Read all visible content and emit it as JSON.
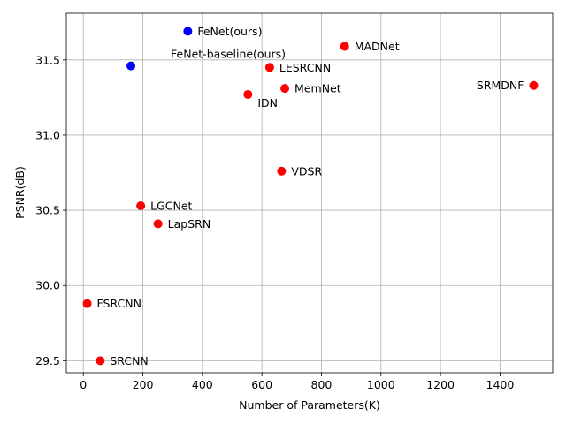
{
  "chart_data": {
    "type": "scatter",
    "title": "",
    "xlabel": "Number of Parameters(K)",
    "ylabel": "PSNR(dB)",
    "xlim": [
      -57,
      1577
    ],
    "ylim": [
      29.42,
      31.81
    ],
    "xticks": [
      0,
      200,
      400,
      600,
      800,
      1000,
      1200,
      1400
    ],
    "yticks": [
      29.5,
      30.0,
      30.5,
      31.0,
      31.5
    ],
    "grid": true,
    "legend": "none",
    "colors": {
      "ours": "#0000ff",
      "others": "#ff0000"
    },
    "points": [
      {
        "label": "FeNet(ours)",
        "x": 351,
        "y": 31.69,
        "group": "ours",
        "label_anchor": "right"
      },
      {
        "label": "FeNet-baseline(ours)",
        "x": 160,
        "y": 31.46,
        "group": "ours",
        "label_anchor": "above"
      },
      {
        "label": "MADNet",
        "x": 878,
        "y": 31.59,
        "group": "others",
        "label_anchor": "right"
      },
      {
        "label": "LESRCNN",
        "x": 626,
        "y": 31.45,
        "group": "others",
        "label_anchor": "right"
      },
      {
        "label": "MemNet",
        "x": 677,
        "y": 31.31,
        "group": "others",
        "label_anchor": "right"
      },
      {
        "label": "IDN",
        "x": 553,
        "y": 31.27,
        "group": "others",
        "label_anchor": "below-right"
      },
      {
        "label": "SRMDNF",
        "x": 1513,
        "y": 31.33,
        "group": "others",
        "label_anchor": "left"
      },
      {
        "label": "VDSR",
        "x": 666,
        "y": 30.76,
        "group": "others",
        "label_anchor": "right"
      },
      {
        "label": "LGCNet",
        "x": 193,
        "y": 30.53,
        "group": "others",
        "label_anchor": "right"
      },
      {
        "label": "LapSRN",
        "x": 251,
        "y": 30.41,
        "group": "others",
        "label_anchor": "right"
      },
      {
        "label": "FSRCNN",
        "x": 13,
        "y": 29.88,
        "group": "others",
        "label_anchor": "right"
      },
      {
        "label": "SRCNN",
        "x": 57,
        "y": 29.5,
        "group": "others",
        "label_anchor": "right"
      }
    ]
  }
}
